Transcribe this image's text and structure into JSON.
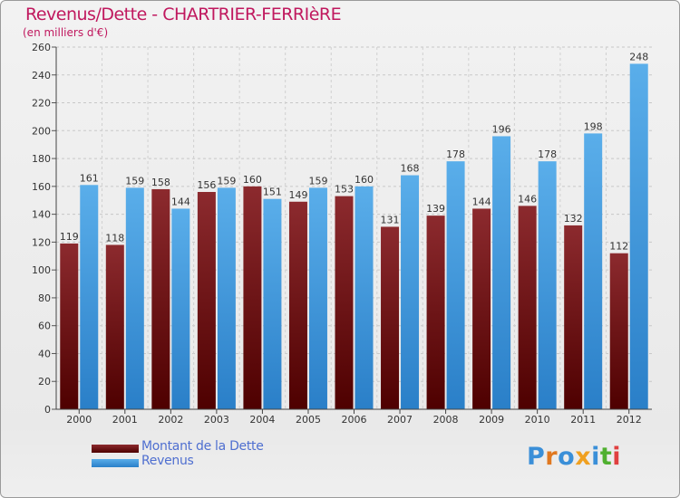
{
  "title": "Revenus/Dette - CHARTRIER-FERRIèRE",
  "subtitle": "(en milliers d'€)",
  "legend": [
    {
      "label": "Montant de la Dette",
      "color": "#6e0a0a"
    },
    {
      "label": "Revenus",
      "color": "#4a9fe0"
    }
  ],
  "logo": {
    "text": "Proxiti",
    "letter_colors": [
      "#3a8fd8",
      "#e07820",
      "#3a8fd8",
      "#f0a020",
      "#3a8fd8",
      "#50b030",
      "#e04040"
    ]
  },
  "chart_data": {
    "type": "bar",
    "categories": [
      "2000",
      "2001",
      "2002",
      "2003",
      "2004",
      "2005",
      "2006",
      "2007",
      "2008",
      "2009",
      "2010",
      "2011",
      "2012"
    ],
    "series": [
      {
        "name": "Montant de la Dette",
        "color": "#6e0a0a",
        "values": [
          119,
          118,
          158,
          156,
          160,
          149,
          153,
          131,
          139,
          144,
          146,
          132,
          112
        ]
      },
      {
        "name": "Revenus",
        "color": "#4a9fe0",
        "values": [
          161,
          159,
          144,
          159,
          151,
          159,
          160,
          168,
          178,
          196,
          178,
          198,
          248
        ]
      }
    ],
    "ylim": [
      0,
      260
    ],
    "yticks": [
      0,
      20,
      40,
      60,
      80,
      100,
      120,
      140,
      160,
      180,
      200,
      220,
      240,
      260
    ],
    "grid": true,
    "legend_position": "bottom-left"
  }
}
